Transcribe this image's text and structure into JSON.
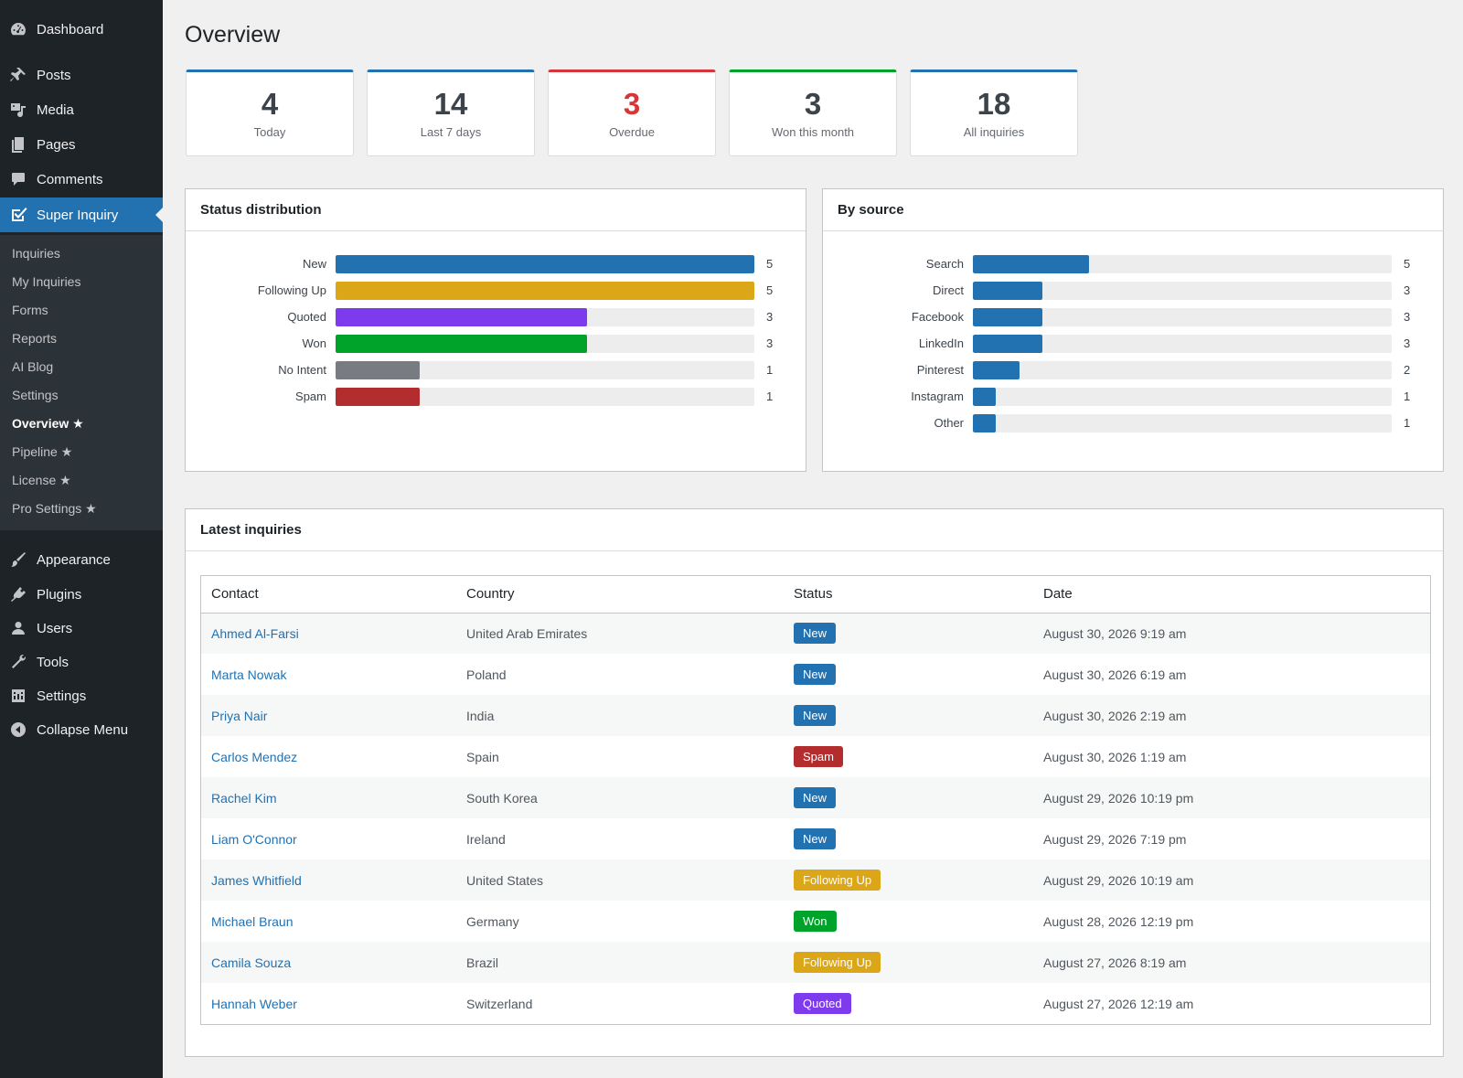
{
  "sidebar": {
    "menu": [
      {
        "label": "Dashboard",
        "icon": "dashboard-icon"
      },
      {
        "label": "Posts",
        "icon": "pin-icon"
      },
      {
        "label": "Media",
        "icon": "media-icon"
      },
      {
        "label": "Pages",
        "icon": "pages-icon"
      },
      {
        "label": "Comments",
        "icon": "comments-icon"
      },
      {
        "label": "Super Inquiry",
        "icon": "super-inquiry-icon"
      }
    ],
    "submenu": [
      "Inquiries",
      "My Inquiries",
      "Forms",
      "Reports",
      "AI Blog",
      "Settings",
      "Overview ★",
      "Pipeline ★",
      "License ★",
      "Pro Settings ★"
    ],
    "menu_bottom": [
      {
        "label": "Appearance",
        "icon": "brush-icon"
      },
      {
        "label": "Plugins",
        "icon": "plugin-icon"
      },
      {
        "label": "Users",
        "icon": "users-icon"
      },
      {
        "label": "Tools",
        "icon": "wrench-icon"
      },
      {
        "label": "Settings",
        "icon": "settings-icon"
      },
      {
        "label": "Collapse Menu",
        "icon": "collapse-icon"
      }
    ]
  },
  "page": {
    "title": "Overview"
  },
  "kpis": [
    {
      "value": "4",
      "label": "Today",
      "color": "#2271b1"
    },
    {
      "value": "14",
      "label": "Last 7 days",
      "color": "#2271b1"
    },
    {
      "value": "3",
      "label": "Overdue",
      "color": "#d63638"
    },
    {
      "value": "3",
      "label": "Won this month",
      "color": "#00a32a"
    },
    {
      "value": "18",
      "label": "All inquiries",
      "color": "#2271b1"
    }
  ],
  "status_panel": {
    "title": "Status distribution",
    "max": 5,
    "rows": [
      {
        "label": "New",
        "value": 5,
        "color": "#2271b1"
      },
      {
        "label": "Following Up",
        "value": 5,
        "color": "#dba617"
      },
      {
        "label": "Quoted",
        "value": 3,
        "color": "#7e3bee"
      },
      {
        "label": "Won",
        "value": 3,
        "color": "#00a32a"
      },
      {
        "label": "No Intent",
        "value": 1,
        "color": "#787c82"
      },
      {
        "label": "Spam",
        "value": 1,
        "color": "#b32d2e"
      }
    ]
  },
  "source_panel": {
    "title": "By source",
    "max": 18,
    "rows": [
      {
        "label": "Search",
        "value": 5,
        "color": "#2271b1"
      },
      {
        "label": "Direct",
        "value": 3,
        "color": "#2271b1"
      },
      {
        "label": "Facebook",
        "value": 3,
        "color": "#2271b1"
      },
      {
        "label": "LinkedIn",
        "value": 3,
        "color": "#2271b1"
      },
      {
        "label": "Pinterest",
        "value": 2,
        "color": "#2271b1"
      },
      {
        "label": "Instagram",
        "value": 1,
        "color": "#2271b1"
      },
      {
        "label": "Other",
        "value": 1,
        "color": "#2271b1"
      }
    ]
  },
  "latest": {
    "title": "Latest inquiries",
    "columns": [
      "Contact",
      "Country",
      "Status",
      "Date"
    ],
    "rows": [
      {
        "contact": "Ahmed Al-Farsi",
        "country": "United Arab Emirates",
        "status": "New",
        "date": "August 30, 2026 9:19 am"
      },
      {
        "contact": "Marta Nowak",
        "country": "Poland",
        "status": "New",
        "date": "August 30, 2026 6:19 am"
      },
      {
        "contact": "Priya Nair",
        "country": "India",
        "status": "New",
        "date": "August 30, 2026 2:19 am"
      },
      {
        "contact": "Carlos Mendez",
        "country": "Spain",
        "status": "Spam",
        "date": "August 30, 2026 1:19 am"
      },
      {
        "contact": "Rachel Kim",
        "country": "South Korea",
        "status": "New",
        "date": "August 29, 2026 10:19 pm"
      },
      {
        "contact": "Liam O'Connor",
        "country": "Ireland",
        "status": "New",
        "date": "August 29, 2026 7:19 pm"
      },
      {
        "contact": "James Whitfield",
        "country": "United States",
        "status": "Following Up",
        "date": "August 29, 2026 10:19 am"
      },
      {
        "contact": "Michael Braun",
        "country": "Germany",
        "status": "Won",
        "date": "August 28, 2026 12:19 pm"
      },
      {
        "contact": "Camila Souza",
        "country": "Brazil",
        "status": "Following Up",
        "date": "August 27, 2026 8:19 am"
      },
      {
        "contact": "Hannah Weber",
        "country": "Switzerland",
        "status": "Quoted",
        "date": "August 27, 2026 12:19 am"
      }
    ],
    "status_colors": {
      "New": "#2271b1",
      "Spam": "#b32d2e",
      "Following Up": "#dba617",
      "Won": "#00a32a",
      "Quoted": "#7e3bee"
    }
  }
}
